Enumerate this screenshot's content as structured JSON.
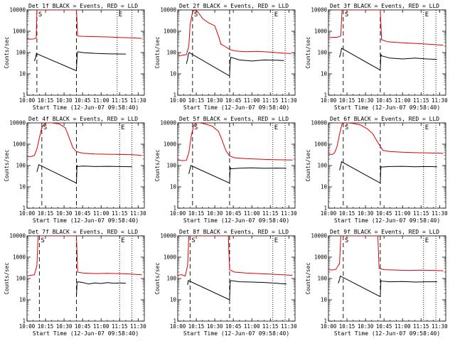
{
  "figure": {
    "xlabel": "Start Time (12-Jun-07 09:58:40)",
    "ylabel": "Counts/sec",
    "x_ticks": [
      "10:00",
      "10:15",
      "10:30",
      "10:45",
      "11:00",
      "11:15",
      "11:30"
    ],
    "y_ticks": [
      "1",
      "10",
      "100",
      "1000",
      "10000"
    ],
    "colors": {
      "events": "#000000",
      "lld": "#e00000",
      "axes": "#000000"
    }
  },
  "chart_data": [
    {
      "type": "line",
      "title": "Det 1f BLACK = Events, RED = LLD",
      "y_scale": "log",
      "ylim": [
        1,
        10000
      ],
      "x_unit": "minutes after 10:00",
      "xlim": [
        0,
        95
      ],
      "markers": {
        "S_dashed": [
          8,
          40
        ],
        "E_dotted": [
          73,
          85
        ],
        "S_label": "S",
        "E_label": "E"
      },
      "series": [
        {
          "name": "LLD",
          "color": "#e00000",
          "x": [
            0,
            3,
            6,
            7.5,
            8,
            40,
            41,
            45,
            55,
            65,
            75,
            85,
            93
          ],
          "y": [
            450,
            420,
            440,
            500,
            10000,
            10000,
            600,
            580,
            560,
            540,
            510,
            490,
            460
          ]
        },
        {
          "name": "Events",
          "color": "#000000",
          "x": [
            6,
            7,
            7.6,
            40,
            40.5,
            41,
            45,
            55,
            65,
            75,
            80
          ],
          "y": [
            40,
            60,
            90,
            14,
            60,
            110,
            100,
            92,
            88,
            86,
            85
          ]
        }
      ]
    },
    {
      "type": "line",
      "title": "Det 2f BLACK = Events, RED = LLD",
      "y_scale": "log",
      "ylim": [
        1,
        10000
      ],
      "x_unit": "minutes after 10:00",
      "xlim": [
        0,
        95
      ],
      "markers": {
        "S_dashed": [
          12,
          42
        ],
        "E_dotted": [
          77,
          87
        ],
        "S_label": "S",
        "E_label": "E"
      },
      "series": [
        {
          "name": "LLD",
          "color": "#e00000",
          "x": [
            0,
            4,
            7,
            9,
            10,
            12,
            14,
            16,
            20,
            25,
            30,
            33,
            35,
            38,
            42,
            46,
            55,
            65,
            75,
            85,
            92
          ],
          "y": [
            70,
            75,
            80,
            200,
            2000,
            8000,
            10000,
            8500,
            4000,
            2500,
            1800,
            600,
            250,
            200,
            140,
            120,
            110,
            115,
            105,
            95,
            90
          ]
        },
        {
          "name": "Events",
          "color": "#000000",
          "x": [
            7,
            8,
            8.6,
            9.2,
            42,
            42.5,
            43,
            50,
            60,
            70,
            80,
            86
          ],
          "y": [
            30,
            50,
            80,
            100,
            8,
            40,
            60,
            45,
            40,
            45,
            44,
            42
          ]
        }
      ]
    },
    {
      "type": "line",
      "title": "Det 3f BLACK = Events, RED = LLD",
      "y_scale": "log",
      "ylim": [
        1,
        10000
      ],
      "x_unit": "minutes after 10:00",
      "xlim": [
        0,
        95
      ],
      "markers": {
        "S_dashed": [
          12,
          42
        ],
        "E_dotted": [
          77,
          87
        ],
        "S_label": "S",
        "E_label": "E"
      },
      "series": [
        {
          "name": "LLD",
          "color": "#e00000",
          "x": [
            0,
            4,
            7,
            10,
            11,
            42,
            43,
            48,
            55,
            65,
            75,
            85,
            93
          ],
          "y": [
            500,
            520,
            520,
            600,
            10000,
            10000,
            400,
            320,
            300,
            280,
            260,
            240,
            220
          ]
        },
        {
          "name": "Events",
          "color": "#000000",
          "x": [
            9,
            10,
            10.6,
            42,
            42.5,
            43,
            50,
            60,
            70,
            80,
            88
          ],
          "y": [
            60,
            100,
            160,
            15,
            80,
            70,
            55,
            50,
            55,
            50,
            48
          ]
        }
      ]
    },
    {
      "type": "line",
      "title": "Det 4f BLACK = Events, RED = LLD",
      "y_scale": "log",
      "ylim": [
        1,
        10000
      ],
      "x_unit": "minutes after 10:00",
      "xlim": [
        0,
        95
      ],
      "markers": {
        "S_dashed": [
          12,
          40
        ],
        "E_dotted": [
          75,
          85
        ],
        "S_label": "S",
        "E_label": "E"
      },
      "series": [
        {
          "name": "LLD",
          "color": "#e00000",
          "x": [
            0,
            4,
            6,
            8,
            10,
            12,
            14,
            16,
            20,
            26,
            31,
            35,
            37,
            40,
            45,
            55,
            65,
            75,
            85,
            93
          ],
          "y": [
            260,
            270,
            300,
            600,
            2000,
            6000,
            9000,
            10000,
            10000,
            9000,
            6000,
            1500,
            700,
            450,
            380,
            350,
            340,
            330,
            320,
            300
          ]
        },
        {
          "name": "Events",
          "color": "#000000",
          "x": [
            8,
            9,
            9.6,
            40,
            40.5,
            41,
            45,
            55,
            65,
            75,
            85
          ],
          "y": [
            50,
            80,
            110,
            15,
            100,
            90,
            95,
            90,
            92,
            90,
            88
          ]
        }
      ]
    },
    {
      "type": "line",
      "title": "Det 5f BLACK = Events, RED = LLD",
      "y_scale": "log",
      "ylim": [
        1,
        10000
      ],
      "x_unit": "minutes after 10:00",
      "xlim": [
        0,
        95
      ],
      "markers": {
        "S_dashed": [
          12,
          42
        ],
        "E_dotted": [
          77,
          87
        ],
        "S_label": "S",
        "E_label": "E"
      },
      "series": [
        {
          "name": "LLD",
          "color": "#e00000",
          "x": [
            0,
            4,
            7,
            9,
            11,
            13,
            15,
            18,
            22,
            28,
            33,
            36,
            39,
            42,
            46,
            55,
            65,
            75,
            85,
            93
          ],
          "y": [
            180,
            170,
            175,
            400,
            2500,
            8000,
            10000,
            10000,
            9000,
            7000,
            4000,
            1500,
            500,
            280,
            230,
            210,
            200,
            190,
            185,
            180
          ]
        },
        {
          "name": "Events",
          "color": "#000000",
          "x": [
            9,
            10,
            10.6,
            42,
            42.5,
            43,
            50,
            60,
            70,
            80,
            88
          ],
          "y": [
            40,
            70,
            100,
            15,
            80,
            70,
            75,
            78,
            74,
            76,
            74
          ]
        }
      ]
    },
    {
      "type": "line",
      "title": "Det 6f BLACK = Events, RED = LLD",
      "y_scale": "log",
      "ylim": [
        1,
        10000
      ],
      "x_unit": "minutes after 10:00",
      "xlim": [
        0,
        95
      ],
      "markers": {
        "S_dashed": [
          12,
          42
        ],
        "E_dotted": [
          77,
          87
        ],
        "S_label": "S",
        "E_label": "E"
      },
      "series": [
        {
          "name": "LLD",
          "color": "#e00000",
          "x": [
            0,
            3,
            5,
            7,
            9,
            11,
            13,
            16,
            20,
            26,
            32,
            36,
            40,
            44,
            50,
            60,
            70,
            80,
            90,
            93
          ],
          "y": [
            350,
            330,
            400,
            800,
            3000,
            9000,
            10000,
            10000,
            9500,
            8000,
            5000,
            3000,
            1200,
            520,
            450,
            420,
            400,
            390,
            380,
            370
          ]
        },
        {
          "name": "Events",
          "color": "#000000",
          "x": [
            9,
            10,
            10.6,
            42,
            42.5,
            43,
            50,
            60,
            70,
            80,
            88
          ],
          "y": [
            60,
            100,
            150,
            15,
            90,
            85,
            90,
            92,
            88,
            90,
            88
          ]
        }
      ]
    },
    {
      "type": "line",
      "title": "Det 7f BLACK = Events, RED = LLD",
      "y_scale": "log",
      "ylim": [
        1,
        10000
      ],
      "x_unit": "minutes after 10:00",
      "xlim": [
        0,
        95
      ],
      "markers": {
        "S_dashed": [
          10,
          40
        ],
        "E_dotted": [
          75,
          85
        ],
        "S_label": "S",
        "E_label": "E"
      },
      "series": [
        {
          "name": "LLD",
          "color": "#e00000",
          "x": [
            0,
            3,
            6,
            8,
            9,
            40,
            41,
            45,
            55,
            65,
            75,
            85,
            93
          ],
          "y": [
            130,
            140,
            150,
            400,
            10000,
            10000,
            200,
            180,
            170,
            175,
            170,
            160,
            150
          ]
        },
        {
          "name": "Events",
          "color": "#000000",
          "x": [
            40,
            40.5,
            41,
            45,
            50,
            55,
            60,
            65,
            70,
            75,
            80
          ],
          "y": [
            14,
            60,
            70,
            65,
            55,
            62,
            58,
            64,
            60,
            62,
            60
          ]
        }
      ]
    },
    {
      "type": "line",
      "title": "Det 8f BLACK = Events, RED = LLD",
      "y_scale": "log",
      "ylim": [
        1,
        10000
      ],
      "x_unit": "minutes after 10:00",
      "xlim": [
        0,
        95
      ],
      "markers": {
        "S_dashed": [
          10,
          42
        ],
        "E_dotted": [
          77,
          87
        ],
        "S_label": "S",
        "E_label": "E"
      },
      "series": [
        {
          "name": "LLD",
          "color": "#e00000",
          "x": [
            0,
            3,
            6,
            8,
            9,
            41,
            42,
            46,
            55,
            65,
            75,
            85,
            93
          ],
          "y": [
            140,
            150,
            130,
            400,
            10000,
            10000,
            260,
            200,
            180,
            170,
            160,
            150,
            140
          ]
        },
        {
          "name": "Events",
          "color": "#000000",
          "x": [
            8,
            8.6,
            42,
            42.5,
            43,
            50,
            60,
            70,
            80,
            88
          ],
          "y": [
            50,
            80,
            10,
            70,
            80,
            70,
            68,
            65,
            60,
            55
          ]
        }
      ]
    },
    {
      "type": "line",
      "title": "Det 9f BLACK = Events, RED = LLD",
      "y_scale": "log",
      "ylim": [
        1,
        10000
      ],
      "x_unit": "minutes after 10:00",
      "xlim": [
        0,
        95
      ],
      "markers": {
        "S_dashed": [
          12,
          42
        ],
        "E_dotted": [
          77,
          87
        ],
        "S_label": "S",
        "E_label": "E"
      },
      "series": [
        {
          "name": "LLD",
          "color": "#e00000",
          "x": [
            0,
            3,
            6,
            9,
            10,
            40,
            41,
            45,
            55,
            65,
            75,
            85,
            93
          ],
          "y": [
            260,
            250,
            270,
            500,
            10000,
            10000,
            300,
            260,
            250,
            240,
            245,
            240,
            230
          ]
        },
        {
          "name": "Events",
          "color": "#000000",
          "x": [
            8,
            9,
            9.6,
            42,
            42.5,
            43,
            50,
            60,
            70,
            80,
            88
          ],
          "y": [
            60,
            90,
            130,
            14,
            80,
            75,
            70,
            72,
            68,
            70,
            70
          ]
        }
      ]
    }
  ]
}
